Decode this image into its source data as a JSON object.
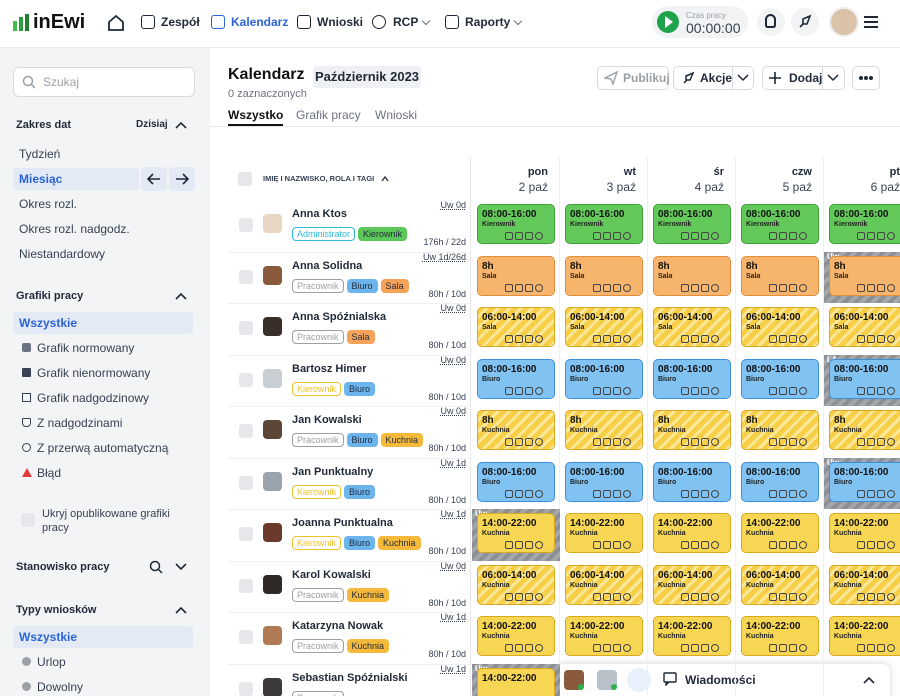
{
  "header": {
    "logo": "inEwi",
    "nav": [
      "Zespół",
      "Kalendarz",
      "Wnioski",
      "RCP",
      "Raporty"
    ],
    "active_nav": 1,
    "timer_label": "Czas pracy",
    "timer": "00:00:00"
  },
  "sidebar": {
    "search_placeholder": "Szukaj",
    "date_range": {
      "title": "Zakres dat",
      "today": "Dzisiaj",
      "items": [
        "Tydzień",
        "Miesiąc",
        "Okres rozl.",
        "Okres rozl. nadgodz.",
        "Niestandardowy"
      ],
      "active": 1
    },
    "schedules": {
      "title": "Grafiki pracy",
      "items": [
        "Wszystkie",
        "Grafik normowany",
        "Grafik nienormowany",
        "Grafik nadgodzinowy",
        "Z nadgodzinami",
        "Z przerwą automatyczną",
        "Błąd"
      ],
      "active": 0,
      "hide_published": "Ukryj opublikowane grafiki pracy"
    },
    "position": {
      "title": "Stanowisko pracy"
    },
    "request_types": {
      "title": "Typy wniosków",
      "items": [
        "Wszystkie",
        "Urlop",
        "Dowolny"
      ],
      "active": 0
    }
  },
  "main": {
    "title": "Kalendarz",
    "month": "Październik 2023",
    "selected": "0 zaznaczonych",
    "tabs": [
      "Wszystko",
      "Grafik pracy",
      "Wnioski"
    ],
    "active_tab": 0,
    "buttons": {
      "publish": "Publikuj",
      "actions": "Akcje",
      "add": "Dodaj"
    },
    "name_column": "IMIĘ I NAZWISKO, ROLA I TAGI",
    "days": [
      {
        "day": "pon",
        "date": "2 paź"
      },
      {
        "day": "wt",
        "date": "3 paź"
      },
      {
        "day": "śr",
        "date": "4 paź"
      },
      {
        "day": "czw",
        "date": "5 paź"
      },
      {
        "day": "pt",
        "date": "6 paź"
      }
    ],
    "employees": [
      {
        "name": "Anna Ktos",
        "tags": [
          {
            "label": "Administrator",
            "color": "#2fb9dc",
            "fill": false
          },
          {
            "label": "Kierownik",
            "color": "#5cc85a",
            "fill": true
          }
        ],
        "leave": "Uw 0d",
        "hours": "176h / 22d",
        "color": "#63c95a",
        "border": "#3d9e3a",
        "striped": false,
        "cells": [
          {
            "time": "08:00-16:00",
            "place": "Kierownik"
          },
          {
            "time": "08:00-16:00",
            "place": "Kierownik"
          },
          {
            "time": "08:00-16:00",
            "place": "Kierownik"
          },
          {
            "time": "08:00-16:00",
            "place": "Kierownik"
          },
          {
            "time": "08:00-16:00",
            "place": "Kierownik"
          }
        ]
      },
      {
        "name": "Anna Solidna",
        "tags": [
          {
            "label": "Pracownik",
            "color": "#9aa0a6",
            "fill": false
          },
          {
            "label": "Biuro",
            "color": "#6cb4ec",
            "fill": true
          },
          {
            "label": "Sala",
            "color": "#f5a35a",
            "fill": true
          }
        ],
        "leave": "Uw 1d/26d",
        "hours": "80h / 10d",
        "color": "#f7b46c",
        "border": "#e08d3c",
        "striped": false,
        "cells": [
          {
            "time": "8h",
            "place": "Sala"
          },
          {
            "time": "8h",
            "place": "Sala"
          },
          {
            "time": "8h",
            "place": "Sala"
          },
          {
            "time": "8h",
            "place": "Sala"
          },
          {
            "badge": "Uw",
            "time": "8h",
            "place": "Sala"
          }
        ]
      },
      {
        "name": "Anna Spóźnialska",
        "tags": [
          {
            "label": "Pracownik",
            "color": "#9aa0a6",
            "fill": false
          },
          {
            "label": "Sala",
            "color": "#f5a35a",
            "fill": true
          }
        ],
        "leave": "Uw 0d",
        "hours": "80h / 10d",
        "color": "#f7cf47",
        "border": "#d9a820",
        "striped": true,
        "cells": [
          {
            "time": "06:00-14:00",
            "place": "Sala"
          },
          {
            "time": "06:00-14:00",
            "place": "Sala"
          },
          {
            "time": "06:00-14:00",
            "place": "Sala"
          },
          {
            "time": "06:00-14:00",
            "place": "Sala"
          },
          {
            "time": "06:00-14:00",
            "place": "Sala"
          }
        ]
      },
      {
        "name": "Bartosz Himer",
        "tags": [
          {
            "label": "Kierownik",
            "color": "#f0c22e",
            "fill": false
          },
          {
            "label": "Biuro",
            "color": "#6cb4ec",
            "fill": true
          }
        ],
        "leave": "Uw 0d",
        "hours": "80h / 10d",
        "color": "#80c2f2",
        "border": "#3c8fd6",
        "striped": false,
        "cells": [
          {
            "time": "08:00-16:00",
            "place": "Biuro"
          },
          {
            "time": "08:00-16:00",
            "place": "Biuro"
          },
          {
            "time": "08:00-16:00",
            "place": "Biuro"
          },
          {
            "time": "08:00-16:00",
            "place": "Biuro"
          },
          {
            "badge": "L4",
            "time": "08:00-16:00",
            "place": "Biuro"
          }
        ]
      },
      {
        "name": "Jan Kowalski",
        "tags": [
          {
            "label": "Pracownik",
            "color": "#9aa0a6",
            "fill": false
          },
          {
            "label": "Biuro",
            "color": "#6cb4ec",
            "fill": true
          },
          {
            "label": "Kuchnia",
            "color": "#f5b93b",
            "fill": true
          }
        ],
        "leave": "Uw 0d",
        "hours": "80h / 10d",
        "color": "#f7cf47",
        "border": "#d9a820",
        "striped": true,
        "cells": [
          {
            "time": "8h",
            "place": "Kuchnia"
          },
          {
            "time": "8h",
            "place": "Kuchnia"
          },
          {
            "time": "8h",
            "place": "Kuchnia"
          },
          {
            "time": "8h",
            "place": "Kuchnia"
          },
          {
            "time": "8h",
            "place": "Kuchnia"
          }
        ]
      },
      {
        "name": "Jan Punktualny",
        "tags": [
          {
            "label": "Kierownik",
            "color": "#f0c22e",
            "fill": false
          },
          {
            "label": "Biuro",
            "color": "#6cb4ec",
            "fill": true
          }
        ],
        "leave": "Uw 1d",
        "hours": "80h / 10d",
        "color": "#80c2f2",
        "border": "#3c8fd6",
        "striped": false,
        "cells": [
          {
            "time": "08:00-16:00",
            "place": "Biuro"
          },
          {
            "time": "08:00-16:00",
            "place": "Biuro"
          },
          {
            "time": "08:00-16:00",
            "place": "Biuro"
          },
          {
            "time": "08:00-16:00",
            "place": "Biuro"
          },
          {
            "badge": "Uw",
            "time": "08:00-16:00",
            "place": "Biuro"
          }
        ]
      },
      {
        "name": "Joanna Punktualna",
        "tags": [
          {
            "label": "Kierownik",
            "color": "#f0c22e",
            "fill": false
          },
          {
            "label": "Biuro",
            "color": "#6cb4ec",
            "fill": true
          },
          {
            "label": "Kuchnia",
            "color": "#f5b93b",
            "fill": true
          }
        ],
        "leave": "Uw 1d",
        "hours": "80h / 10d",
        "color": "#f7d654",
        "border": "#d9a820",
        "striped": false,
        "cells": [
          {
            "badge": "Uw",
            "time": "14:00-22:00",
            "place": "Kuchnia"
          },
          {
            "time": "14:00-22:00",
            "place": "Kuchnia"
          },
          {
            "time": "14:00-22:00",
            "place": "Kuchnia"
          },
          {
            "time": "14:00-22:00",
            "place": "Kuchnia"
          },
          {
            "time": "14:00-22:00",
            "place": "Kuchnia"
          }
        ]
      },
      {
        "name": "Karol Kowalski",
        "tags": [
          {
            "label": "Pracownik",
            "color": "#9aa0a6",
            "fill": false
          },
          {
            "label": "Kuchnia",
            "color": "#f5b93b",
            "fill": true
          }
        ],
        "leave": "Uw 0d",
        "hours": "80h / 10d",
        "color": "#f7cf47",
        "border": "#d9a820",
        "striped": true,
        "cells": [
          {
            "time": "06:00-14:00",
            "place": "Kuchnia"
          },
          {
            "time": "06:00-14:00",
            "place": "Kuchnia"
          },
          {
            "time": "06:00-14:00",
            "place": "Kuchnia"
          },
          {
            "time": "06:00-14:00",
            "place": "Kuchnia"
          },
          {
            "time": "06:00-14:00",
            "place": "Kuchnia"
          }
        ]
      },
      {
        "name": "Katarzyna Nowak",
        "tags": [
          {
            "label": "Pracownik",
            "color": "#9aa0a6",
            "fill": false
          },
          {
            "label": "Kuchnia",
            "color": "#f5b93b",
            "fill": true
          }
        ],
        "leave": "Uw 1d",
        "hours": "80h / 10d",
        "color": "#f7d654",
        "border": "#d9a820",
        "striped": false,
        "cells": [
          {
            "time": "14:00-22:00",
            "place": "Kuchnia"
          },
          {
            "time": "14:00-22:00",
            "place": "Kuchnia"
          },
          {
            "time": "14:00-22:00",
            "place": "Kuchnia"
          },
          {
            "time": "14:00-22:00",
            "place": "Kuchnia"
          },
          {
            "time": "14:00-22:00",
            "place": "Kuchnia"
          }
        ]
      },
      {
        "name": "Sebastian Spóźnialski",
        "tags": [
          {
            "label": "Pracownik",
            "color": "#9aa0a6",
            "fill": false
          }
        ],
        "leave": "Uw 1d",
        "color": "#f7d654",
        "border": "#d9a820",
        "striped": false,
        "cells": [
          {
            "badge": "Uw",
            "time": "14:00-22:00"
          }
        ]
      }
    ]
  },
  "messages": {
    "label": "Wiadomości"
  }
}
